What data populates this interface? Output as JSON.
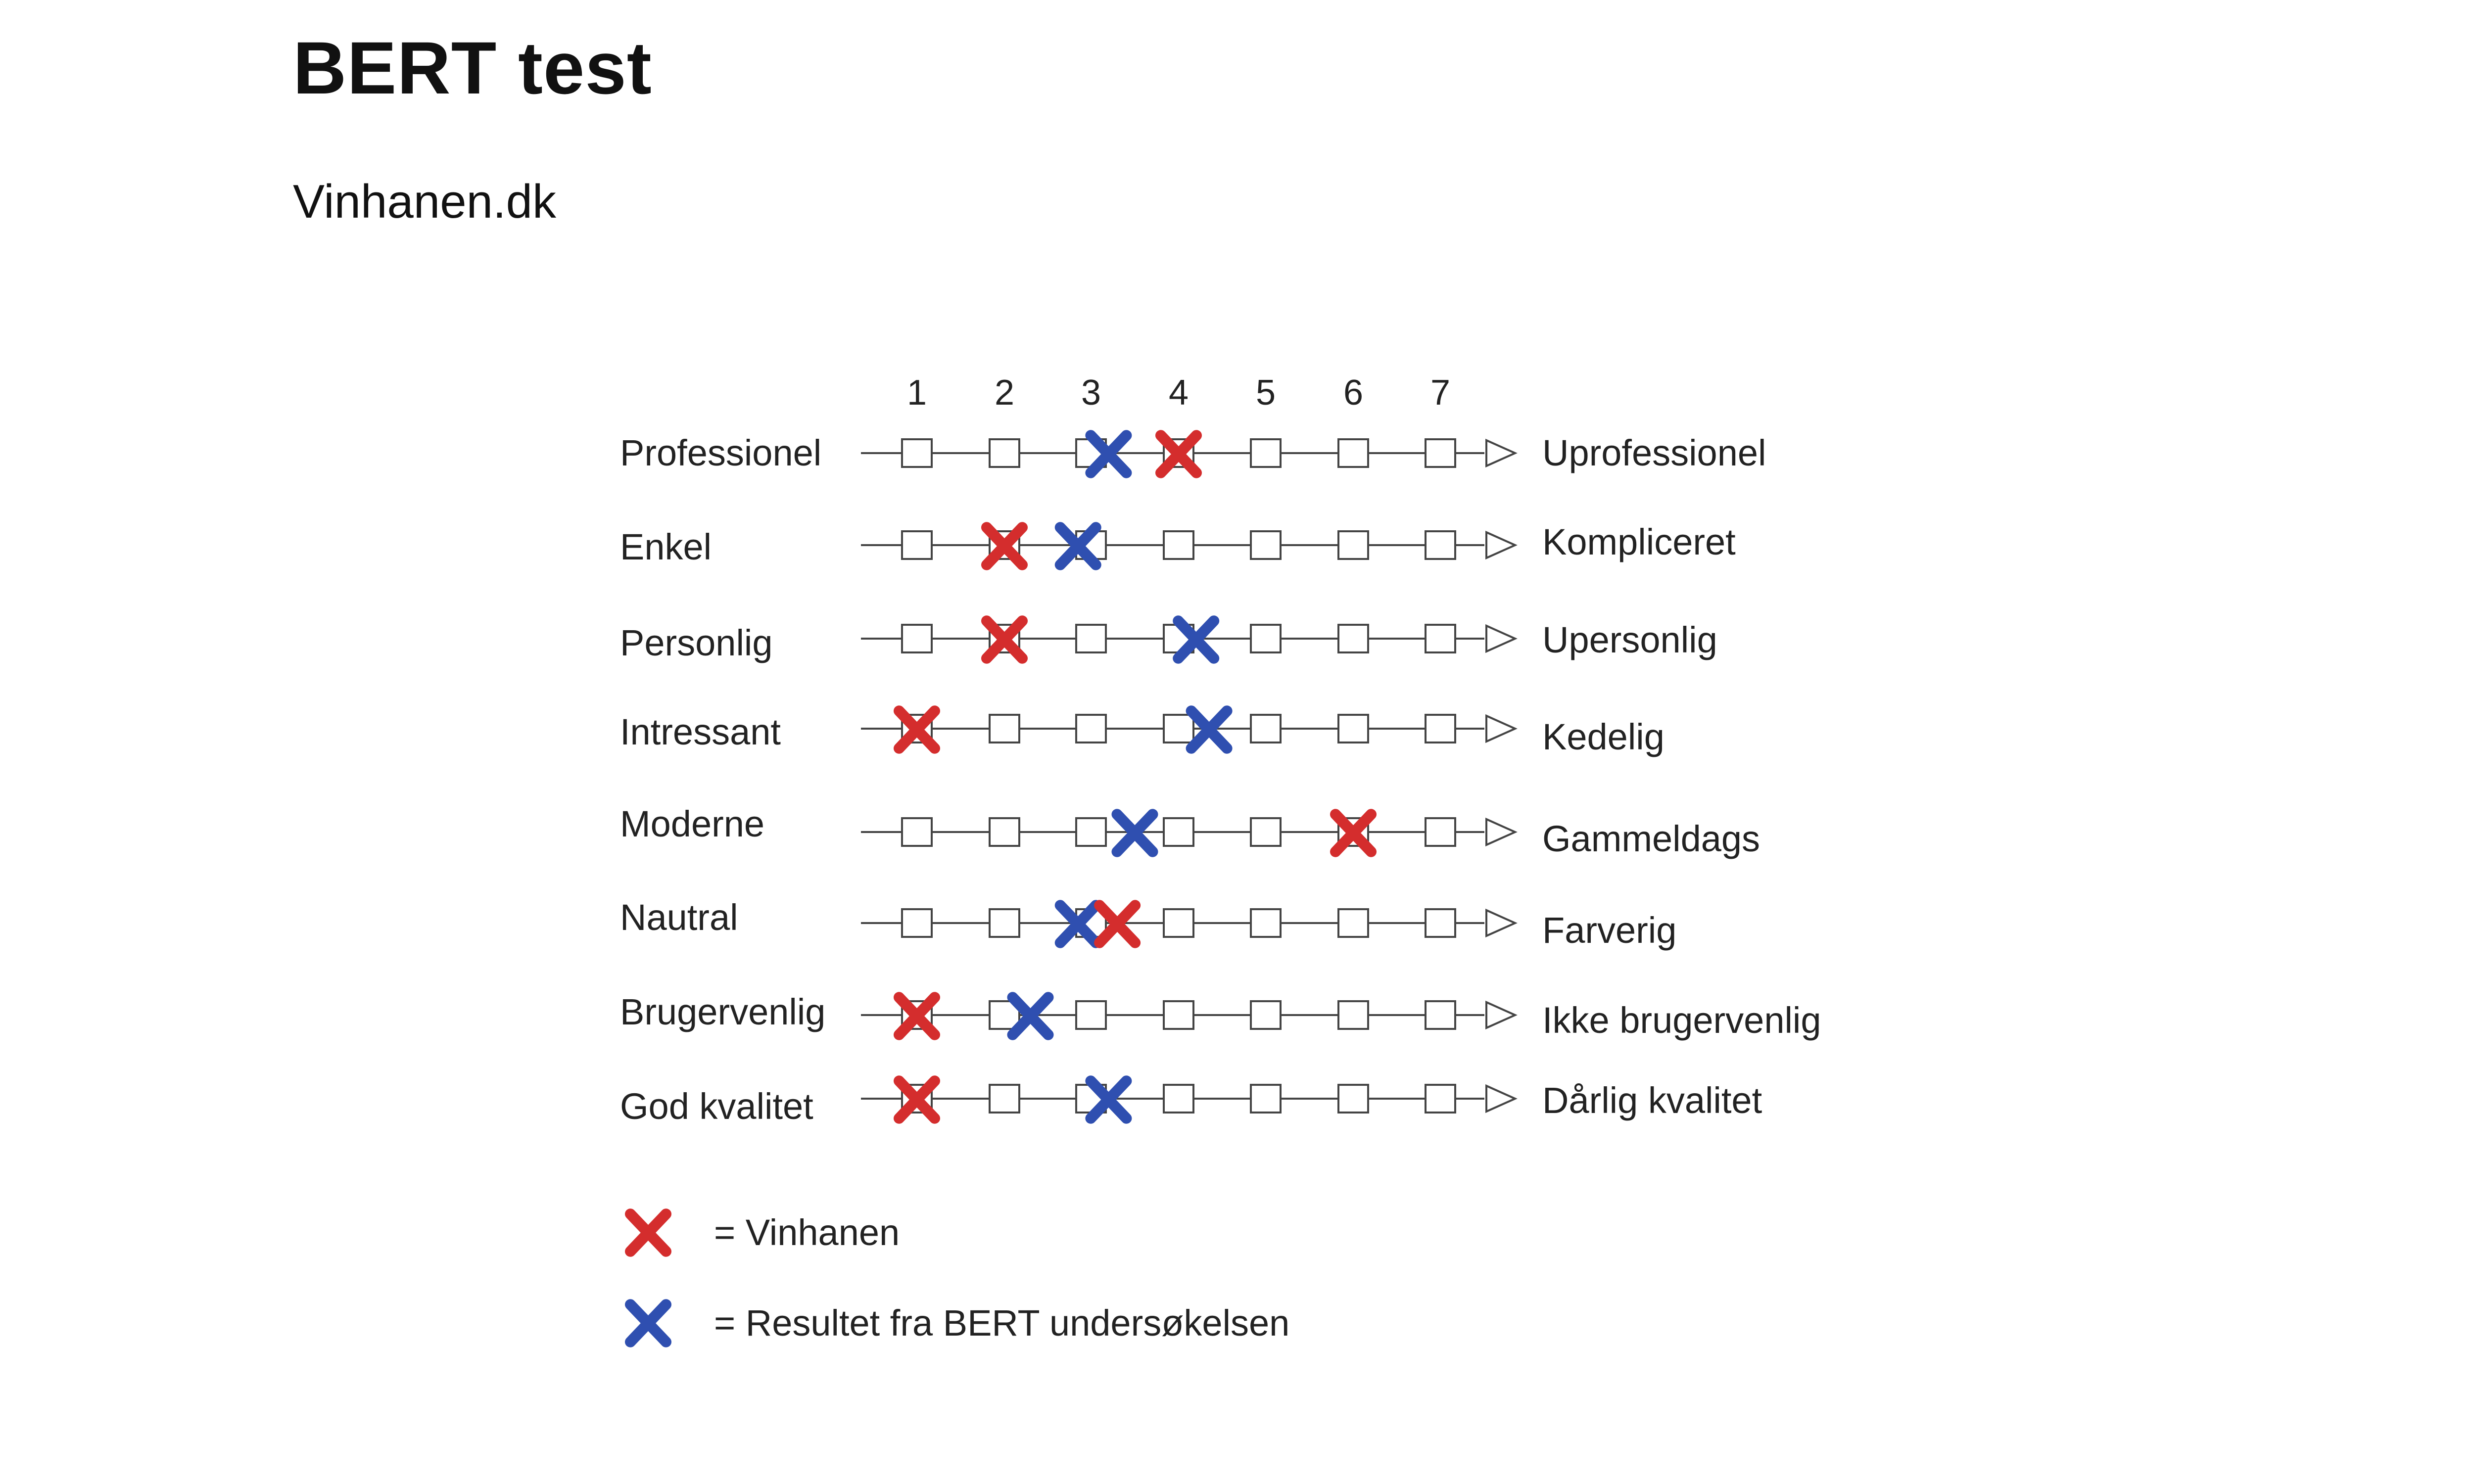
{
  "page": {
    "title": "BERT test",
    "subtitle": "Vinhanen.dk"
  },
  "scale": {
    "numbers": [
      "1",
      "2",
      "3",
      "4",
      "5",
      "6",
      "7"
    ]
  },
  "colors": {
    "vinhanen": "#d42d2d",
    "bert": "#2f4fb0",
    "line": "#444444",
    "text": "#222222"
  },
  "rows": [
    {
      "left": "Professionel",
      "right": "Uprofessionel",
      "vinhanen": 4.0,
      "bert": 3.2
    },
    {
      "left": "Enkel",
      "right": "Kompliceret",
      "vinhanen": 2.0,
      "bert": 2.85
    },
    {
      "left": "Personlig",
      "right": "Upersonlig",
      "vinhanen": 2.0,
      "bert": 4.2
    },
    {
      "left": "Intressant",
      "right": "Kedelig",
      "vinhanen": 1.0,
      "bert": 4.35
    },
    {
      "left": "Moderne",
      "right": "Gammeldags",
      "vinhanen": 6.0,
      "bert": 3.5
    },
    {
      "left": "Nautral",
      "right": "Farverig",
      "vinhanen": 3.3,
      "bert": 2.85
    },
    {
      "left": "Brugervenlig",
      "right": "Ikke brugervenlig",
      "vinhanen": 1.0,
      "bert": 2.3
    },
    {
      "left": "God kvalitet",
      "right": "Dårlig kvalitet",
      "vinhanen": 1.0,
      "bert": 3.2
    }
  ],
  "legend": [
    {
      "marker": "red-x",
      "label": "= Vinhanen"
    },
    {
      "marker": "blue-x",
      "label": "= Resultet fra BERT undersøkelsen"
    }
  ]
}
